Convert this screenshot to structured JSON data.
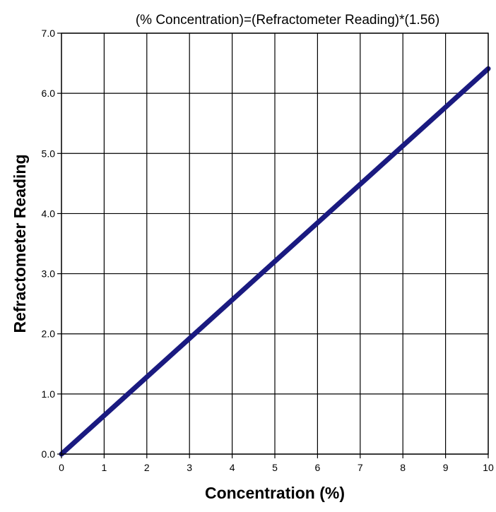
{
  "chart_data": {
    "type": "line",
    "title": "(%  Concentration)=(Refractometer Reading)*(1.56)",
    "xlabel": "Concentration (%)",
    "ylabel": "Refractometer Reading",
    "xlim": [
      0,
      10
    ],
    "ylim": [
      0,
      7
    ],
    "xticks": [
      0,
      1,
      2,
      3,
      4,
      5,
      6,
      7,
      8,
      9,
      10
    ],
    "yticks": [
      0,
      1,
      2,
      3,
      4,
      5,
      6,
      7
    ],
    "xtick_labels": [
      "0",
      "1",
      "2",
      "3",
      "4",
      "5",
      "6",
      "7",
      "8",
      "9",
      "10"
    ],
    "ytick_labels": [
      "0.0",
      "1.0",
      "2.0",
      "3.0",
      "4.0",
      "5.0",
      "6.0",
      "7.0"
    ],
    "grid": true,
    "legend": "none",
    "series": [
      {
        "color": "#1a1a80",
        "x": [
          0,
          10
        ],
        "y": [
          0,
          6.41
        ]
      }
    ]
  }
}
